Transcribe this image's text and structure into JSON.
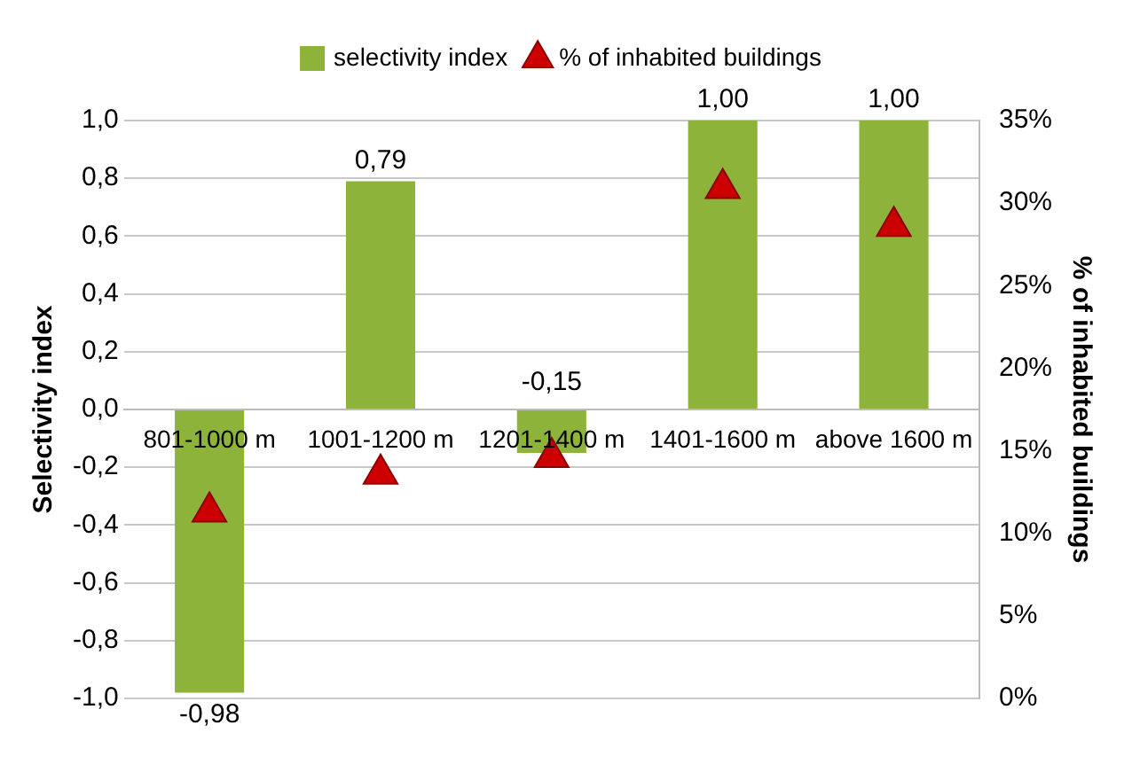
{
  "chart_data": {
    "type": "bar",
    "categories": [
      "801-1000 m",
      "1001-1200 m",
      "1201-1400 m",
      "1401-1600 m",
      "above 1600 m"
    ],
    "ylabel": "Selectivity index",
    "y2label": "% of inhabited buildings",
    "series": [
      {
        "name": "selectivity index",
        "color": "#8db33a",
        "values": [
          -0.98,
          0.79,
          -0.15,
          1.0,
          1.0
        ],
        "value_labels": [
          "-0,98",
          "0,79",
          "-0,15",
          "1,00",
          "1,00"
        ]
      },
      {
        "name": "% of inhabited buildings",
        "type": "scatter",
        "axis": "y2",
        "color": "#cc0000",
        "marker": "triangle",
        "values": [
          11.3,
          13.6,
          14.6,
          30.9,
          28.6
        ]
      }
    ],
    "ylim": [
      -1,
      1
    ],
    "yticks": [
      {
        "value": -1,
        "label": "-1,0"
      },
      {
        "value": -0.8,
        "label": "-0,8"
      },
      {
        "value": -0.6,
        "label": "-0,6"
      },
      {
        "value": -0.4,
        "label": "-0,4"
      },
      {
        "value": -0.2,
        "label": "-0,2"
      },
      {
        "value": 0,
        "label": "0,0"
      },
      {
        "value": 0.2,
        "label": "0,2"
      },
      {
        "value": 0.4,
        "label": "0,4"
      },
      {
        "value": 0.6,
        "label": "0,6"
      },
      {
        "value": 0.8,
        "label": "0,8"
      },
      {
        "value": 1,
        "label": "1,0"
      }
    ],
    "y2lim": [
      0,
      35
    ],
    "y2ticks": [
      {
        "value": 0,
        "label": "0%"
      },
      {
        "value": 5,
        "label": "5%"
      },
      {
        "value": 10,
        "label": "10%"
      },
      {
        "value": 15,
        "label": "15%"
      },
      {
        "value": 20,
        "label": "20%"
      },
      {
        "value": 25,
        "label": "25%"
      },
      {
        "value": 30,
        "label": "30%"
      },
      {
        "value": 35,
        "label": "35%"
      }
    ],
    "grid": "y",
    "legend": "top"
  }
}
